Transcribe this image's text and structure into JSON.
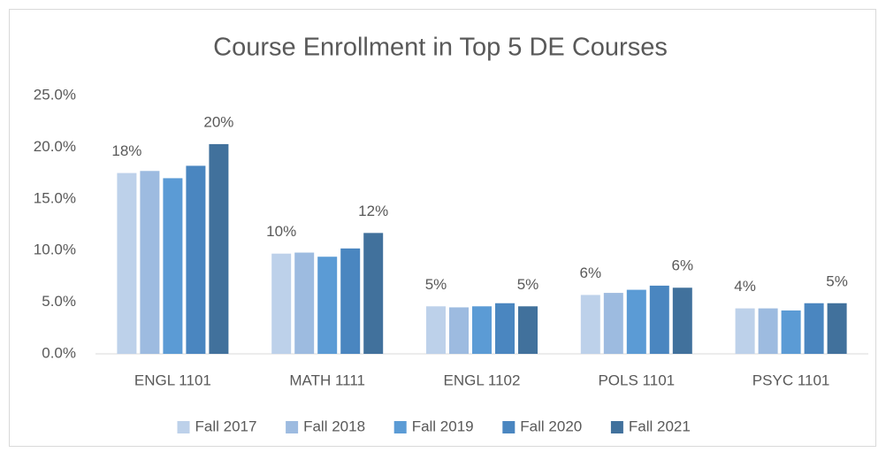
{
  "chart_data": {
    "type": "bar",
    "title": "Course Enrollment in Top 5 DE Courses",
    "categories": [
      "ENGL 1101",
      "MATH 1111",
      "ENGL 1102",
      "POLS 1101",
      "PSYC 1101"
    ],
    "series": [
      {
        "name": "Fall 2017",
        "color": "#bdd1ea",
        "values": [
          17.5,
          9.7,
          4.6,
          5.7,
          4.4
        ],
        "value_labels": [
          "18%",
          "10%",
          "5%",
          "6%",
          "4%"
        ]
      },
      {
        "name": "Fall 2018",
        "color": "#9dbbe0",
        "values": [
          17.7,
          9.8,
          4.5,
          5.9,
          4.4
        ]
      },
      {
        "name": "Fall 2019",
        "color": "#5b9bd5",
        "values": [
          17.0,
          9.4,
          4.6,
          6.2,
          4.2
        ]
      },
      {
        "name": "Fall 2020",
        "color": "#4a86c0",
        "values": [
          18.2,
          10.2,
          4.9,
          6.6,
          4.9
        ]
      },
      {
        "name": "Fall 2021",
        "color": "#41719c",
        "values": [
          20.3,
          11.7,
          4.6,
          6.4,
          4.9
        ],
        "value_labels": [
          "20%",
          "12%",
          "5%",
          "6%",
          "5%"
        ]
      }
    ],
    "ylim": [
      0,
      25
    ],
    "yticks": [
      {
        "value": 0,
        "label": "0.0%"
      },
      {
        "value": 5,
        "label": "5.0%"
      },
      {
        "value": 10,
        "label": "10.0%"
      },
      {
        "value": 15,
        "label": "15.0%"
      },
      {
        "value": 20,
        "label": "20.0%"
      },
      {
        "value": 25,
        "label": "25.0%"
      }
    ],
    "grid": false,
    "legend": "bottom"
  }
}
